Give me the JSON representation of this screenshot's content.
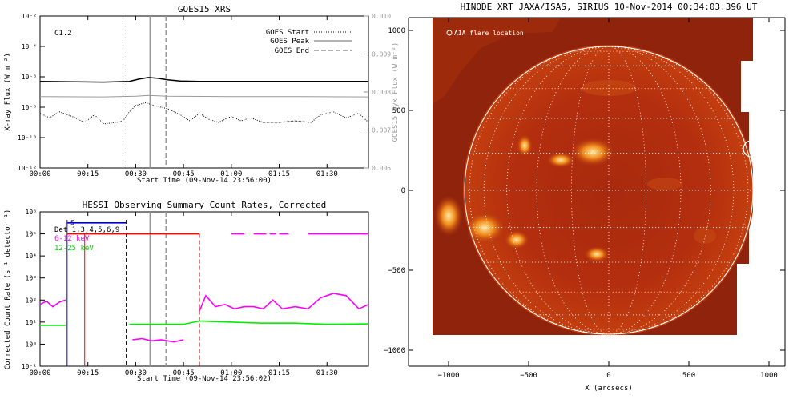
{
  "goes": {
    "title": "GOES15 XRS",
    "ylabel_left": "X-ray Flux (W m⁻²)",
    "ylabel_right": "GOES15 Lyx Flux (W m⁻²)",
    "xlabel": "Start Time (09-Nov-14 23:56:00)",
    "class_label": "C1.2",
    "legend": [
      "GOES Start",
      "GOES Peak",
      "GOES End"
    ]
  },
  "hessi": {
    "title": "HESSI Observing Summary Count Rates, Corrected",
    "ylabel": "Corrected Count Rate (s⁻¹ detector⁻¹)",
    "xlabel": "Start Time (09-Nov-14 23:56:02)",
    "legend": [
      "Det 1,3,4,5,6,9",
      "6-12 keV",
      "12-25 keV"
    ],
    "marker": "S"
  },
  "xrt": {
    "title": "HINODE XRT JAXA/ISAS, SIRIUS 10-Nov-2014 00:34:03.396 UT",
    "legend": "AIA flare location",
    "xlabel": "X (arcsecs)"
  },
  "chart_data": [
    {
      "type": "line",
      "title": "GOES15 XRS",
      "xlabel": "Start Time (09-Nov-14 23:56:00)",
      "ylabel": "X-ray Flux (W m⁻²)",
      "ylabel_right": "GOES15 Lyx Flux (W m⁻²)",
      "x_range_min": [
        0,
        103
      ],
      "x_ticks": [
        "00:00",
        "00:15",
        "00:30",
        "00:45",
        "01:00",
        "01:15",
        "01:30"
      ],
      "y_log": true,
      "ylim_exp": [
        -12,
        -2
      ],
      "y_ticks": [
        "10⁻²",
        "10⁻⁴",
        "10⁻⁶",
        "10⁻⁸",
        "10⁻¹⁰",
        "10⁻¹²"
      ],
      "y2lim": [
        0.006,
        0.01
      ],
      "y2_ticks": [
        "0.010",
        "0.009",
        "0.008",
        "0.007",
        "0.006"
      ],
      "annotation": "C1.2",
      "events_min": {
        "start": 26,
        "peak": 34.5,
        "end": 39.5
      },
      "series": [
        {
          "name": "",
          "style": "solid",
          "color": "#000000",
          "x": [
            0,
            20,
            28,
            31,
            34,
            37,
            40,
            44,
            50,
            60,
            70,
            80,
            90,
            103
          ],
          "log_y": [
            -6.3,
            -6.35,
            -6.3,
            -6.15,
            -6.05,
            -6.1,
            -6.2,
            -6.28,
            -6.3,
            -6.3,
            -6.3,
            -6.3,
            -6.3,
            -6.3
          ]
        },
        {
          "name": "",
          "style": "solid",
          "color": "#999999",
          "x": [
            0,
            20,
            30,
            34,
            40,
            60,
            80,
            103
          ],
          "log_y": [
            -7.3,
            -7.32,
            -7.28,
            -7.22,
            -7.28,
            -7.3,
            -7.3,
            -7.32
          ]
        },
        {
          "name": "",
          "style": "dotted",
          "color": "#000000",
          "x": [
            0,
            3,
            6,
            10,
            14,
            17,
            20,
            24,
            26,
            28,
            30,
            33,
            36,
            40,
            44,
            47,
            50,
            53,
            56,
            60,
            63,
            66,
            70,
            75,
            80,
            85,
            88,
            92,
            96,
            100,
            103
          ],
          "log_y": [
            -8.4,
            -8.7,
            -8.3,
            -8.6,
            -9.0,
            -8.5,
            -9.1,
            -9.0,
            -8.9,
            -8.3,
            -7.9,
            -7.7,
            -7.9,
            -8.1,
            -8.5,
            -8.9,
            -8.4,
            -8.8,
            -9.0,
            -8.6,
            -8.9,
            -8.7,
            -9.0,
            -9.0,
            -8.9,
            -9.0,
            -8.5,
            -8.3,
            -8.7,
            -8.4,
            -9.0
          ]
        }
      ]
    },
    {
      "type": "line",
      "title": "HESSI Observing Summary Count Rates, Corrected",
      "xlabel": "Start Time (09-Nov-14 23:56:02)",
      "ylabel": "Corrected Count Rate (s⁻¹ detector⁻¹)",
      "x_range_min": [
        0,
        103
      ],
      "x_ticks": [
        "00:00",
        "00:15",
        "00:30",
        "00:45",
        "01:00",
        "01:15",
        "01:30"
      ],
      "y_log": true,
      "ylim_exp": [
        -1,
        6
      ],
      "y_ticks": [
        "10⁶",
        "10⁵",
        "10⁴",
        "10³",
        "10²",
        "10¹",
        "10⁰",
        "10⁻¹"
      ],
      "annotation": "S",
      "series": [
        {
          "name": "Det 1,3,4,5,6,9",
          "color": "#0000cc",
          "segments": [
            {
              "x": [
                8.5,
                27
              ],
              "log_y": [
                5.5,
                5.5
              ]
            }
          ]
        },
        {
          "name": "",
          "color": "#ff0000",
          "segments": [
            {
              "x": [
                8.5,
                50
              ],
              "log_y": [
                5.0,
                5.0
              ]
            }
          ]
        },
        {
          "name": "6-12 keV",
          "color": "#ff00ff",
          "segments": [
            {
              "x": [
                0,
                2,
                4,
                6,
                8
              ],
              "log_y": [
                1.8,
                1.95,
                1.7,
                1.9,
                2.0
              ]
            },
            {
              "x": [
                29,
                32,
                35,
                38,
                42,
                45
              ],
              "log_y": [
                0.2,
                0.25,
                0.15,
                0.2,
                0.1,
                0.2
              ]
            },
            {
              "x": [
                50,
                52,
                55,
                58,
                61,
                64,
                67,
                70,
                73,
                76,
                80,
                84,
                88,
                92,
                96,
                100,
                103
              ],
              "log_y": [
                1.5,
                2.2,
                1.7,
                1.8,
                1.6,
                1.7,
                1.7,
                1.6,
                2.0,
                1.6,
                1.7,
                1.6,
                2.1,
                2.3,
                2.2,
                1.6,
                1.8
              ]
            },
            {
              "x": [
                60,
                64
              ],
              "log_y": [
                5.0,
                5.0
              ]
            },
            {
              "x": [
                67,
                71
              ],
              "log_y": [
                5.0,
                5.0
              ]
            },
            {
              "x": [
                72,
                74
              ],
              "log_y": [
                5.0,
                5.0
              ]
            },
            {
              "x": [
                75,
                78
              ],
              "log_y": [
                5.0,
                5.0
              ]
            },
            {
              "x": [
                84,
                103
              ],
              "log_y": [
                5.0,
                5.0
              ]
            }
          ]
        },
        {
          "name": "12-25 keV",
          "color": "#00ee00",
          "segments": [
            {
              "x": [
                0,
                8
              ],
              "log_y": [
                0.85,
                0.85
              ]
            },
            {
              "x": [
                28,
                45,
                50,
                60,
                70,
                80,
                90,
                103
              ],
              "log_y": [
                0.9,
                0.9,
                1.05,
                1.0,
                0.95,
                0.95,
                0.9,
                0.92
              ]
            }
          ]
        }
      ]
    }
  ],
  "map": {
    "x_ticks": [
      "−1000",
      "−500",
      "0",
      "500",
      "1000"
    ],
    "y_ticks": [
      "1000",
      "500",
      "0",
      "−500",
      "−1000"
    ],
    "xlabel": "X (arcsecs)"
  }
}
